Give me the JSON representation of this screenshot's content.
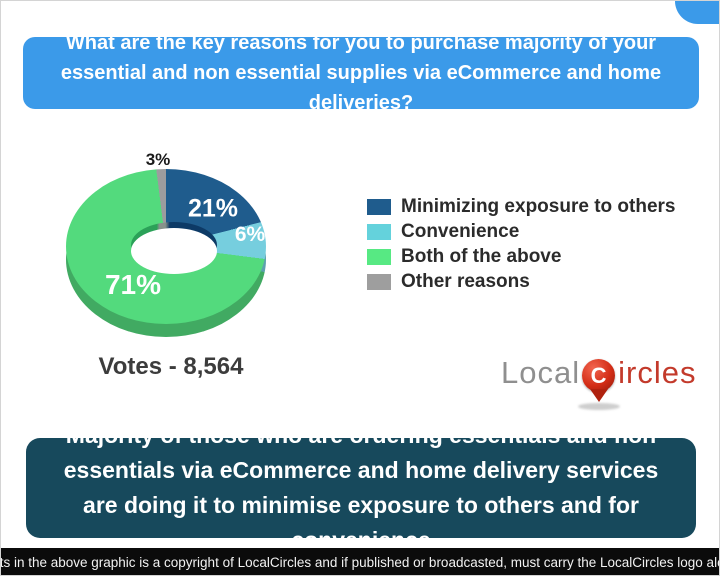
{
  "header": {
    "question": "What are the key reasons for you to purchase majority of your essential and non essential supplies via eCommerce and home deliveries?"
  },
  "chart_data": {
    "type": "pie",
    "style": "3d-donut",
    "categories": [
      "Minimizing exposure to others",
      "Convenience",
      "Both of the above",
      "Other reasons"
    ],
    "values": [
      21,
      6,
      71,
      3
    ],
    "unit": "%",
    "slice_labels": [
      "21%",
      "6%",
      "71%",
      "3%"
    ],
    "slice_colors": [
      "#1f5c8d",
      "#76cede",
      "#53da7d",
      "#9c9c9e"
    ],
    "start_angle_deg": 0,
    "direction": "clockwise",
    "legend_position": "right",
    "votes_label": "Votes - 8,564",
    "total_votes": "8,564"
  },
  "legend": {
    "items": [
      {
        "label": "Minimizing exposure to others",
        "color": "#1f5c8d"
      },
      {
        "label": "Convenience",
        "color": "#64d2dc"
      },
      {
        "label": "Both of the above",
        "color": "#57e983"
      },
      {
        "label": "Other reasons",
        "color": "#9e9e9e"
      }
    ]
  },
  "logo": {
    "word_gray": "Local",
    "pin_letter": "C",
    "word_red": "ircles",
    "gray_color": "#8f8f8f",
    "red_color": "#c33a2b"
  },
  "summary": {
    "text": "Majority of those who are ordering essentials and non essentials via eCommerce and home delivery services are doing it to minimise exposure to others and for convenience"
  },
  "footer": {
    "text": "All contents in the above graphic is a copyright of LocalCircles and if published or broadcasted, must carry the LocalCircles logo along with it."
  },
  "theme": {
    "header_bg": "#3b9ae9",
    "summary_bg": "#17495c",
    "footer_bg": "#0b0b0b"
  }
}
